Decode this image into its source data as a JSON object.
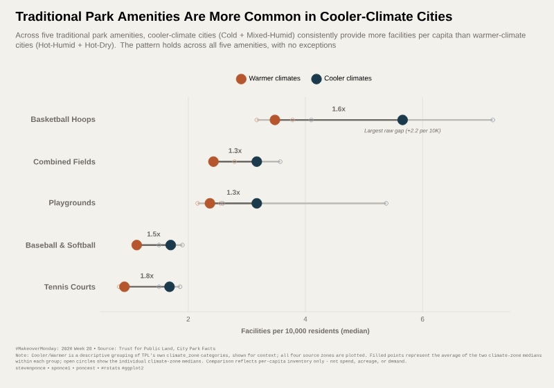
{
  "chart_data": {
    "type": "scatter",
    "orientation": "horizontal",
    "title": "Traditional Park Amenities Are More Common in Cooler-Climate Cities",
    "subtitle": "Across five traditional park amenities, cooler-climate cities (Cold + Mixed-Humid) consistently provide more facilities per capita than warmer-climate cities (Hot-Humid + Hot-Dry). The pattern holds across all five amenities, with no exceptions",
    "xlabel": "Facilities per 10,000 residents (median)",
    "categories": [
      "Basketball Hoops",
      "Combined Fields",
      "Playgrounds",
      "Baseball & Softball",
      "Tennis Courts"
    ],
    "series": [
      {
        "name": "Warmer climates",
        "color": "#b5562d",
        "values": [
          3.48,
          2.43,
          2.37,
          1.12,
          0.91
        ]
      },
      {
        "name": "Cooler climates",
        "color": "#1b3a4b",
        "values": [
          5.66,
          3.17,
          3.17,
          1.7,
          1.68
        ]
      },
      {
        "color": "#d9a58a",
        "values": [
          3.17,
          null,
          2.16,
          null,
          0.82
        ]
      },
      {
        "color": "#d9a58a",
        "values": [
          3.78,
          2.79,
          2.55,
          null,
          null
        ]
      },
      {
        "color": "#9aa5ab",
        "values": [
          4.1,
          null,
          2.59,
          1.5,
          1.5
        ]
      },
      {
        "color": "#9aa5ab",
        "values": [
          7.2,
          3.57,
          5.38,
          1.9,
          1.86
        ]
      }
    ],
    "xlim": [
      0.5,
      7.5
    ],
    "xticks": [
      2,
      4,
      6
    ],
    "grid": "x",
    "legend": "top",
    "marker": "circle",
    "annotations": [
      "1.6x",
      "1.3x",
      "1.3x",
      "1.5x",
      "1.8x",
      {
        "text": "Largest raw gap (+2.2 per 10K)",
        "x": 5.66,
        "y": "Basketball Hoops"
      },
      "#MakeoverMonday: 2026 Week 28 • Source: Trust for Public Land, City Park Facts",
      "Note: Cooler/Warmer is a descriptive grouping of TPL's own climate_zone categories, shown for context; all four source zones are plotted. Filled points represent the average of the two climate-zone medians within each group; open circles show the individual climate-zone medians. Comparison reflects per-capita inventory only - not spend, acreage, or demand.",
      "stevenponce • sponce1 • poncest • #rstats #ggplot2"
    ]
  }
}
